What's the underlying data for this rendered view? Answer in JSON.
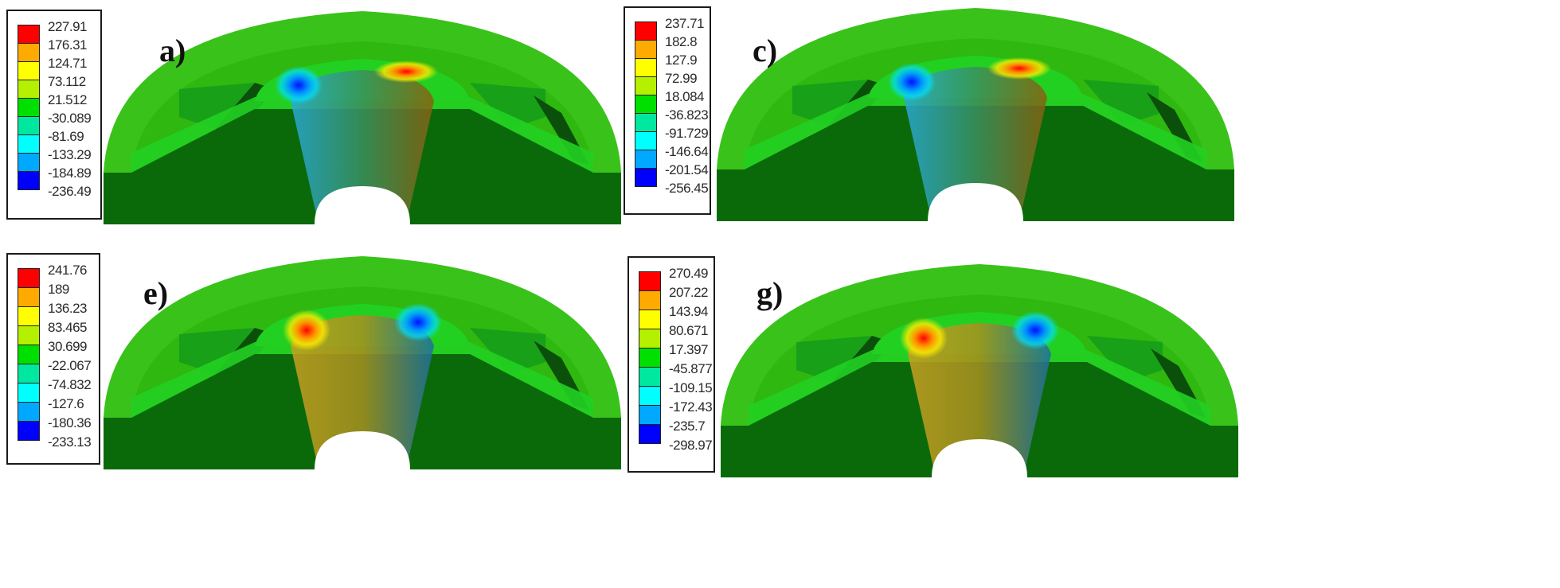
{
  "figure": {
    "panels": [
      {
        "id": "a",
        "label": "a)",
        "legend": [
          "227.91",
          "176.31",
          "124.71",
          "73.112",
          "21.512",
          "-30.089",
          "-81.69",
          "-133.29",
          "-184.89",
          "-236.49"
        ],
        "hot_side": "right"
      },
      {
        "id": "c",
        "label": "c)",
        "legend": [
          "237.71",
          "182.8",
          "127.9",
          "72.99",
          "18.084",
          "-36.823",
          "-91.729",
          "-146.64",
          "-201.54",
          "-256.45"
        ],
        "hot_side": "right"
      },
      {
        "id": "e",
        "label": "e)",
        "legend": [
          "241.76",
          "189",
          "136.23",
          "83.465",
          "30.699",
          "-22.067",
          "-74.832",
          "-127.6",
          "-180.36",
          "-233.13"
        ],
        "hot_side": "left"
      },
      {
        "id": "g",
        "label": "g)",
        "legend": [
          "270.49",
          "207.22",
          "143.94",
          "80.671",
          "17.397",
          "-45.877",
          "-109.15",
          "-172.43",
          "-235.7",
          "-298.97"
        ],
        "hot_side": "left"
      }
    ],
    "colormap": [
      "#ff0000",
      "#ffaa00",
      "#ffff00",
      "#b5f000",
      "#00e000",
      "#00e8a0",
      "#00ffff",
      "#00a8ff",
      "#0000ff"
    ]
  },
  "chart_data": [
    {
      "type": "heatmap",
      "title": "a)",
      "legend_levels": [
        227.91,
        176.31,
        124.71,
        73.112,
        21.512,
        -30.089,
        -81.69,
        -133.29,
        -184.89,
        -236.49
      ],
      "range": [
        -236.49,
        227.91
      ]
    },
    {
      "type": "heatmap",
      "title": "c)",
      "legend_levels": [
        237.71,
        182.8,
        127.9,
        72.99,
        18.084,
        -36.823,
        -91.729,
        -146.64,
        -201.54,
        -256.45
      ],
      "range": [
        -256.45,
        237.71
      ]
    },
    {
      "type": "heatmap",
      "title": "e)",
      "legend_levels": [
        241.76,
        189,
        136.23,
        83.465,
        30.699,
        -22.067,
        -74.832,
        -127.6,
        -180.36,
        -233.13
      ],
      "range": [
        -233.13,
        241.76
      ]
    },
    {
      "type": "heatmap",
      "title": "g)",
      "legend_levels": [
        270.49,
        207.22,
        143.94,
        80.671,
        17.397,
        -45.877,
        -109.15,
        -172.43,
        -235.7,
        -298.97
      ],
      "range": [
        -298.97,
        270.49
      ]
    }
  ]
}
